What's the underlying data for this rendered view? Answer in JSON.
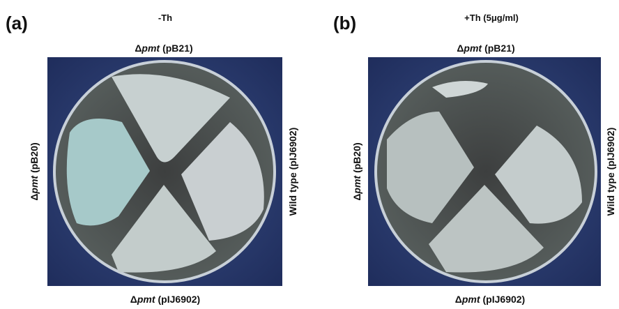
{
  "panels": [
    {
      "label": "(a)",
      "condition": "-Th",
      "top": {
        "prefix": "Δ",
        "gene": "pmt",
        "plasmid": "(pB21)"
      },
      "left": {
        "prefix": "Δ",
        "gene": "pmt",
        "plasmid": "(pB20)"
      },
      "right": "Wild type (pIJ6902)",
      "bottom": {
        "prefix": "Δ",
        "gene": "pmt",
        "plasmid": "(pIJ6902)"
      }
    },
    {
      "label": "(b)",
      "condition": "+Th (5μg/ml)",
      "top": {
        "prefix": "Δ",
        "gene": "pmt",
        "plasmid": "(pB21)"
      },
      "left": {
        "prefix": "Δ",
        "gene": "pmt",
        "plasmid": "(pB20)"
      },
      "right": "Wild type (pIJ6902)",
      "bottom": {
        "prefix": "Δ",
        "gene": "pmt",
        "plasmid": "(pIJ6902)"
      }
    }
  ]
}
